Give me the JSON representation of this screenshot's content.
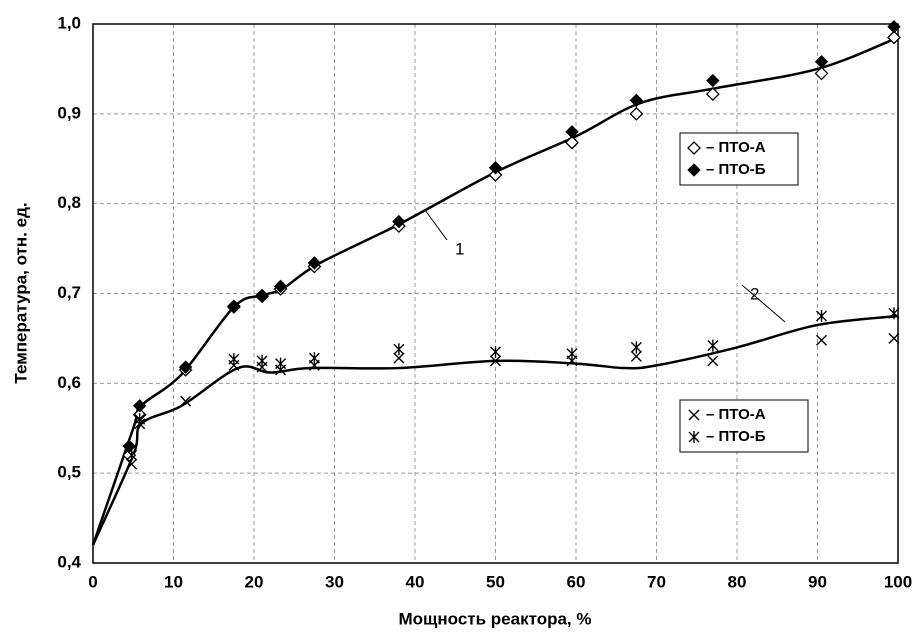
{
  "chart_data": {
    "type": "scatter",
    "xlabel": "Мощность реактора, %",
    "ylabel": "Температура, отн. ед.",
    "xlim": [
      0,
      100
    ],
    "ylim": [
      0.4,
      1.0
    ],
    "xticks": [
      0,
      10,
      20,
      30,
      40,
      50,
      60,
      70,
      80,
      90,
      100
    ],
    "yticks": [
      {
        "value": 0.4,
        "label": "0,4"
      },
      {
        "value": 0.5,
        "label": "0,5"
      },
      {
        "value": 0.6,
        "label": "0,6"
      },
      {
        "value": 0.7,
        "label": "0,7"
      },
      {
        "value": 0.8,
        "label": "0,8"
      },
      {
        "value": 0.9,
        "label": "0,9"
      },
      {
        "value": 1.0,
        "label": "1,0"
      }
    ],
    "grid": true,
    "series": [
      {
        "name": "– ПТО-А",
        "marker": "diamond-open",
        "color": "#000000",
        "x": [
          4.5,
          5.8,
          11.5,
          17.5,
          21,
          23.3,
          27.5,
          38,
          50,
          59.5,
          67.5,
          77,
          90.5,
          99.5
        ],
        "values": [
          0.52,
          0.565,
          0.615,
          0.685,
          0.697,
          0.705,
          0.73,
          0.775,
          0.832,
          0.868,
          0.9,
          0.922,
          0.945,
          0.985
        ]
      },
      {
        "name": "– ПТО-Б",
        "marker": "diamond",
        "color": "#000000",
        "x": [
          4.5,
          5.8,
          11.5,
          17.5,
          21,
          23.3,
          27.5,
          38,
          50,
          59.5,
          67.5,
          77,
          90.5,
          99.5
        ],
        "values": [
          0.53,
          0.575,
          0.618,
          0.686,
          0.698,
          0.708,
          0.734,
          0.78,
          0.84,
          0.88,
          0.915,
          0.937,
          0.958,
          0.997
        ]
      },
      {
        "name": "– ПТО-А",
        "marker": "x",
        "color": "#000000",
        "x": [
          4.8,
          5.8,
          11.5,
          17.5,
          21,
          23.3,
          27.5,
          38,
          50,
          59.5,
          67.5,
          77,
          90.5,
          99.5
        ],
        "values": [
          0.51,
          0.555,
          0.58,
          0.62,
          0.618,
          0.615,
          0.62,
          0.628,
          0.625,
          0.625,
          0.63,
          0.625,
          0.648,
          0.65
        ]
      },
      {
        "name": "– ПТО-Б",
        "marker": "asterisk",
        "color": "#000000",
        "x": [
          4.8,
          5.8,
          17.5,
          21,
          23.3,
          27.5,
          38,
          50,
          59.5,
          67.5,
          77,
          90.5,
          99.5
        ],
        "values": [
          0.52,
          0.56,
          0.627,
          0.625,
          0.622,
          0.628,
          0.638,
          0.635,
          0.633,
          0.64,
          0.642,
          0.675,
          0.678
        ]
      }
    ],
    "curves": [
      {
        "name": "1",
        "color": "#000000",
        "x": [
          0,
          5,
          6,
          11,
          17.5,
          21,
          23.5,
          28,
          38,
          50,
          60,
          68,
          77,
          90,
          100
        ],
        "values": [
          0.42,
          0.55,
          0.575,
          0.61,
          0.685,
          0.698,
          0.705,
          0.733,
          0.777,
          0.835,
          0.875,
          0.912,
          0.928,
          0.95,
          0.985
        ]
      },
      {
        "name": "2",
        "color": "#000000",
        "x": [
          0,
          5,
          6,
          11,
          18,
          22,
          27,
          38,
          50,
          60,
          66,
          70,
          80,
          90,
          100
        ],
        "values": [
          0.42,
          0.52,
          0.555,
          0.575,
          0.617,
          0.612,
          0.617,
          0.617,
          0.625,
          0.622,
          0.617,
          0.62,
          0.64,
          0.665,
          0.675
        ]
      }
    ]
  }
}
